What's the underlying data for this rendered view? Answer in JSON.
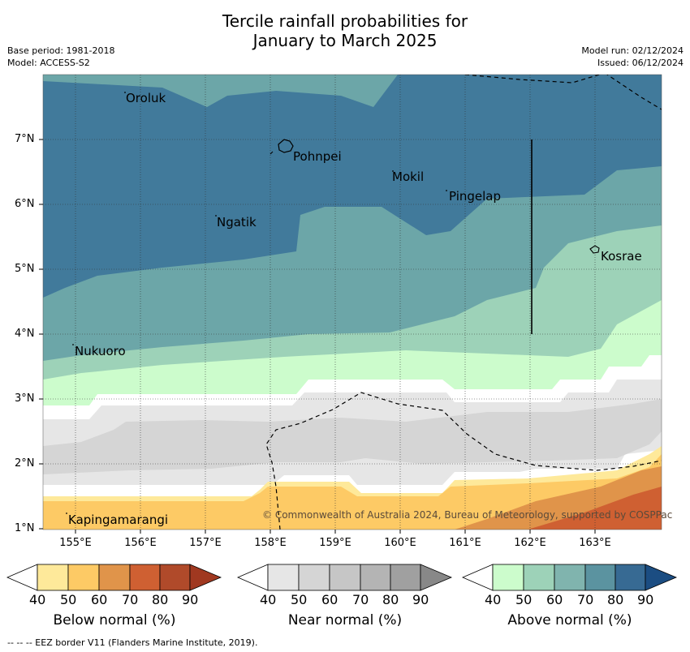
{
  "title_line1": "Tercile rainfall probabilities for",
  "title_line2": "January to March 2025",
  "base_period": "Base period: 1981-2018",
  "model": "Model: ACCESS-S2",
  "model_run": "Model run: 02/12/2024",
  "issued": "Issued: 06/12/2024",
  "latitude_labels": [
    "7°N",
    "6°N",
    "5°N",
    "4°N",
    "3°N",
    "2°N",
    "1°N"
  ],
  "longitude_labels": [
    "155°E",
    "156°E",
    "157°E",
    "158°E",
    "159°E",
    "160°E",
    "161°E",
    "162°E",
    "163°E"
  ],
  "places": [
    "Oroluk",
    "Pohnpei",
    "Mokil",
    "Pingelap",
    "Ngatik",
    "Kosrae",
    "Nukuoro",
    "Kapingamarangi"
  ],
  "copyright": "© Commonwealth of Australia 2024, Bureau of Meteorology, supported by COSPPac",
  "colorbars": [
    {
      "title": "Below normal (%)",
      "ticks": [
        "40",
        "50",
        "60",
        "70",
        "80",
        "90"
      ],
      "colors": [
        "#ffffff",
        "#fee99a",
        "#fdca65",
        "#e0944a",
        "#cf6032",
        "#b04a2a",
        "#a03820"
      ]
    },
    {
      "title": "Near normal (%)",
      "ticks": [
        "40",
        "50",
        "60",
        "70",
        "80",
        "90"
      ],
      "colors": [
        "#ffffff",
        "#e6e6e6",
        "#d5d5d5",
        "#c6c6c6",
        "#b4b4b4",
        "#a0a0a0",
        "#888888"
      ]
    },
    {
      "title": "Above normal (%)",
      "ticks": [
        "40",
        "50",
        "60",
        "70",
        "80",
        "90"
      ],
      "colors": [
        "#ffffff",
        "#ccfccc",
        "#9dd2b8",
        "#80b4ae",
        "#5b93a0",
        "#376a93",
        "#1b4d82"
      ]
    }
  ],
  "footnote": "--  --  -- EEZ border V11 (Flanders Marine Institute, 2019)."
}
